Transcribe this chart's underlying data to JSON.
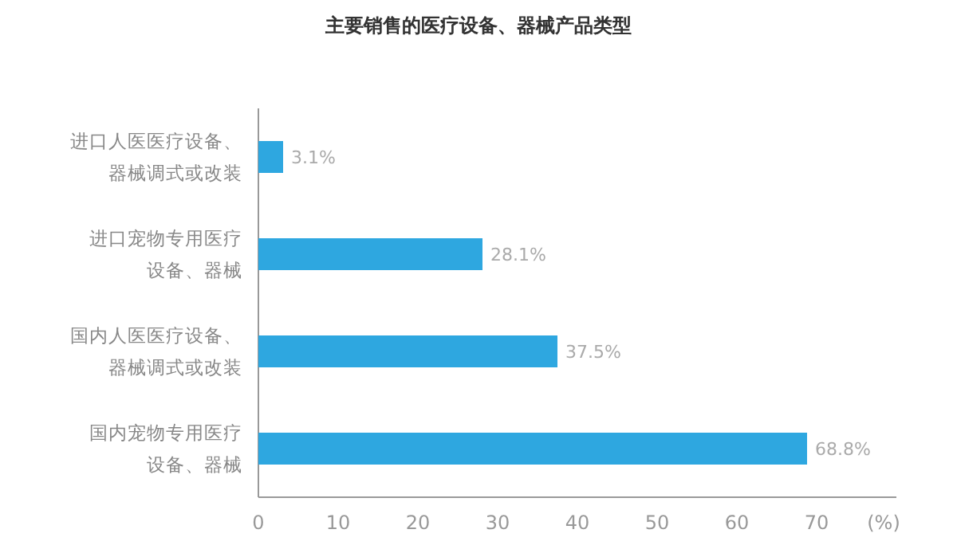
{
  "chart_data": {
    "type": "bar",
    "orientation": "horizontal",
    "title": "主要销售的医疗设备、器械产品类型",
    "categories": [
      "进口人医医疗设备、器械调式或改装",
      "进口宠物专用医疗设备、器械",
      "国内人医医疗设备、器械调式或改装",
      "国内宠物专用医疗设备、器械"
    ],
    "values": [
      3.1,
      28.1,
      37.5,
      68.8
    ],
    "value_labels": [
      "3.1%",
      "28.1%",
      "37.5%",
      "68.8%"
    ],
    "color": "#2ea7e0",
    "xlabel": "(%)",
    "xlim": [
      0,
      80
    ],
    "xticks": [
      0,
      10,
      20,
      30,
      40,
      50,
      60,
      70
    ]
  }
}
